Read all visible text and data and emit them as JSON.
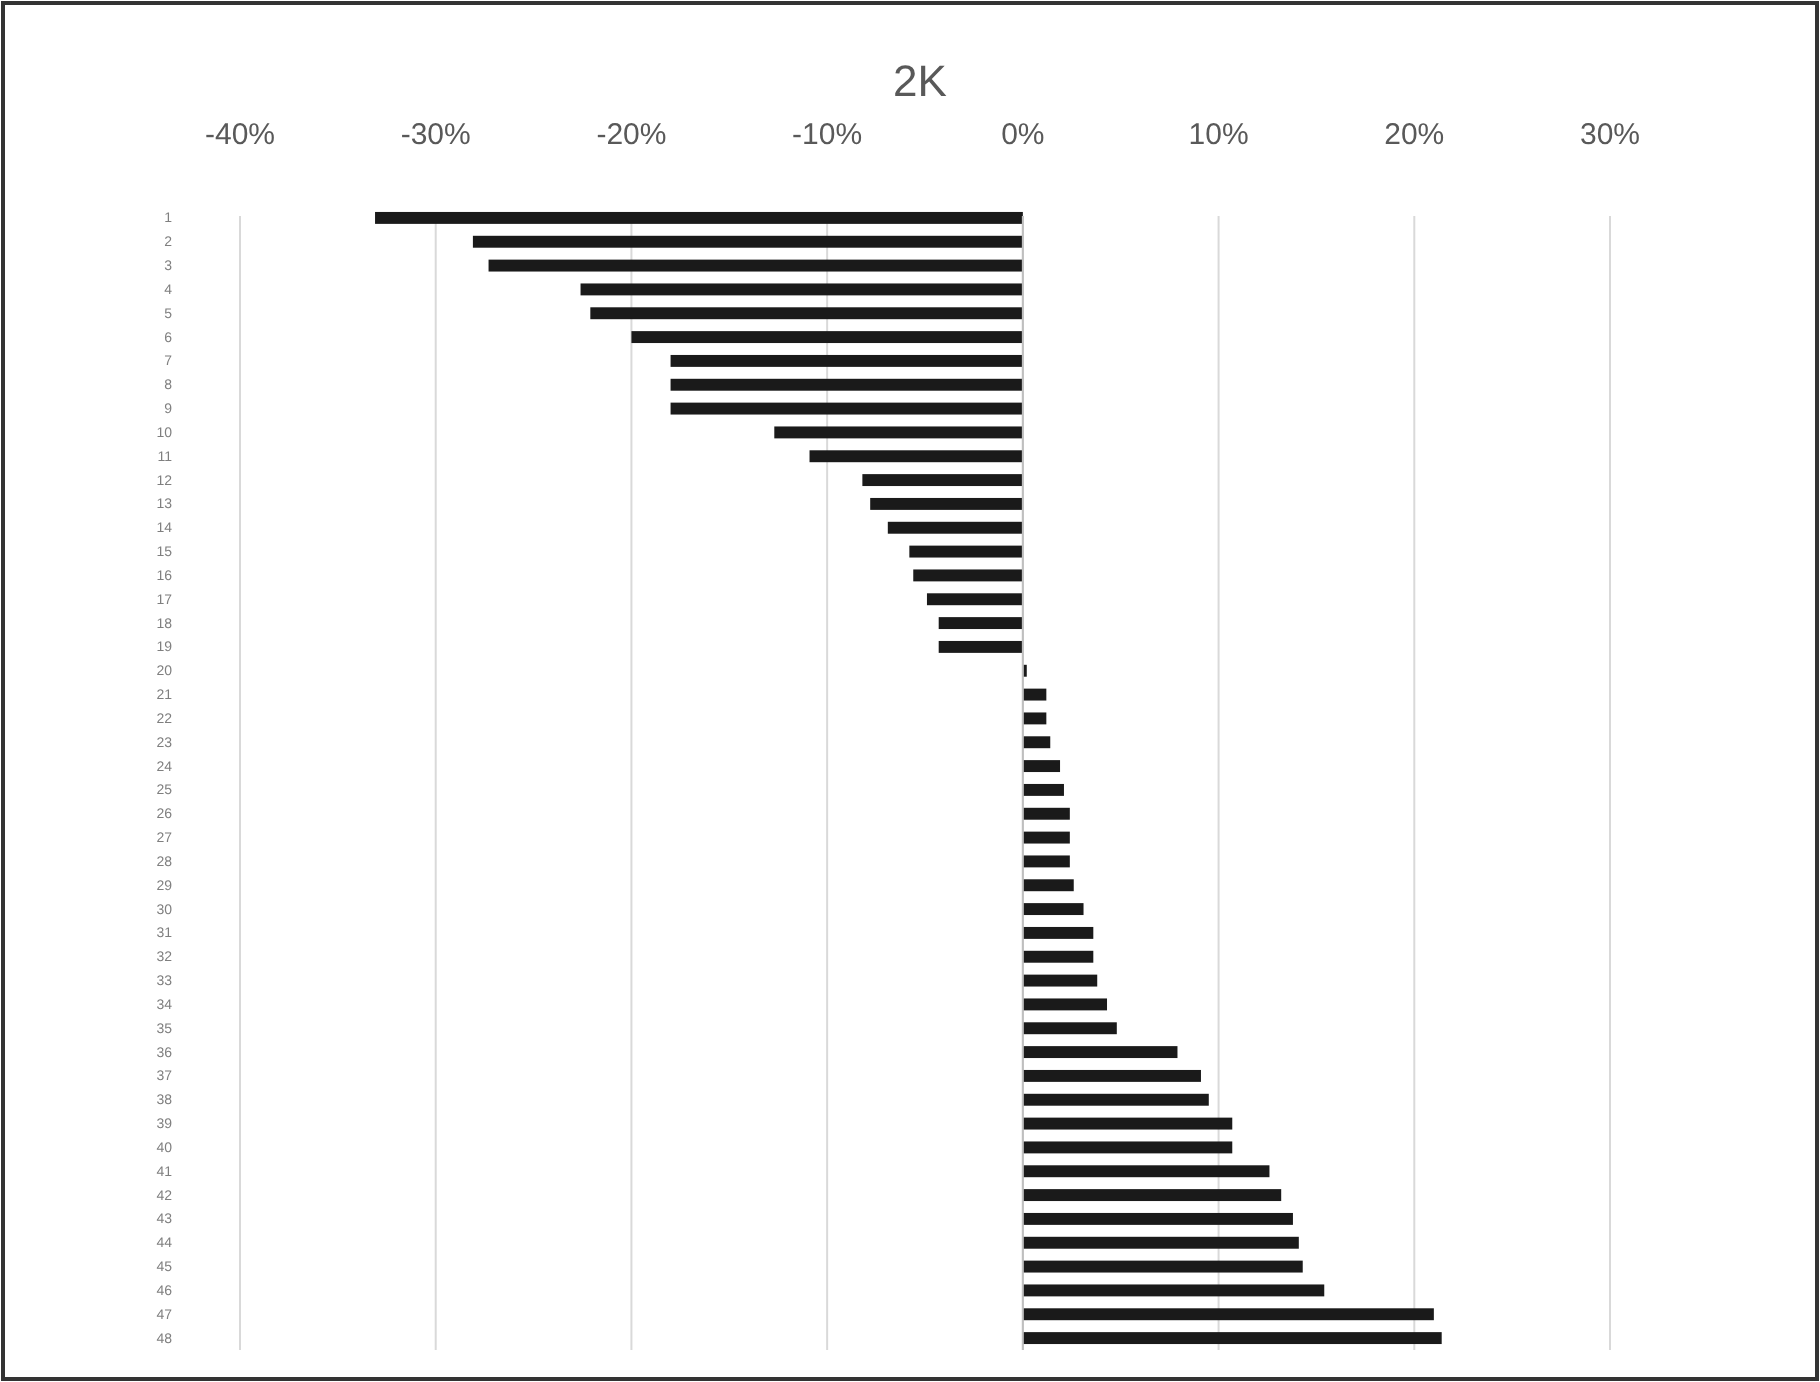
{
  "chart_data": {
    "type": "bar",
    "orientation": "horizontal",
    "title": "2K",
    "categories": [
      "1",
      "2",
      "3",
      "4",
      "5",
      "6",
      "7",
      "8",
      "9",
      "10",
      "11",
      "12",
      "13",
      "14",
      "15",
      "16",
      "17",
      "18",
      "19",
      "20",
      "21",
      "22",
      "23",
      "24",
      "25",
      "26",
      "27",
      "28",
      "29",
      "30",
      "31",
      "32",
      "33",
      "34",
      "35",
      "36",
      "37",
      "38",
      "39",
      "40",
      "41",
      "42",
      "43",
      "44",
      "45",
      "46",
      "47",
      "48"
    ],
    "values": [
      -33.1,
      -28.1,
      -27.3,
      -22.6,
      -22.1,
      -20.0,
      -18.0,
      -18.0,
      -18.0,
      -12.7,
      -10.9,
      -8.2,
      -7.8,
      -6.9,
      -5.8,
      -5.6,
      -4.9,
      -4.3,
      -4.3,
      0.2,
      1.2,
      1.2,
      1.4,
      1.9,
      2.1,
      2.4,
      2.4,
      2.4,
      2.6,
      3.1,
      3.6,
      3.6,
      3.8,
      4.3,
      4.8,
      7.9,
      9.1,
      9.5,
      10.7,
      10.7,
      12.6,
      13.2,
      13.8,
      14.1,
      14.3,
      15.4,
      21.0,
      21.4
    ],
    "color": "#1a1a1a",
    "xlim": [
      -40,
      30
    ],
    "xticks": [
      {
        "value": -40,
        "label": "-40%"
      },
      {
        "value": -30,
        "label": "-30%"
      },
      {
        "value": -20,
        "label": "-20%"
      },
      {
        "value": -10,
        "label": "-10%"
      },
      {
        "value": 0,
        "label": "0%"
      },
      {
        "value": 10,
        "label": "10%"
      },
      {
        "value": 20,
        "label": "20%"
      },
      {
        "value": 30,
        "label": "30%"
      }
    ],
    "grid": "x"
  }
}
